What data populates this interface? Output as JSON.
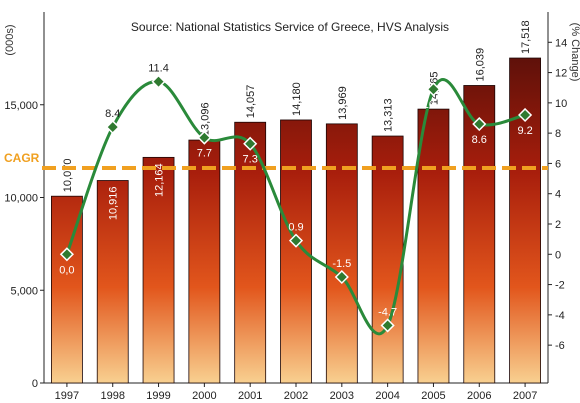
{
  "chart_data": {
    "type": "bar",
    "title": "Source: National Statistics Service of Greece, HVS Analysis",
    "ylabel_left": "(000s)",
    "ylabel_right": "(% Change)",
    "categories": [
      "1997",
      "1998",
      "1999",
      "2000",
      "2001",
      "2002",
      "2003",
      "2004",
      "2005",
      "2006",
      "2007"
    ],
    "bar_values": [
      10070,
      10916,
      12164,
      13096,
      14057,
      14180,
      13969,
      13313,
      14765,
      16039,
      17518
    ],
    "bar_labels": [
      "10,070",
      "10,916",
      "12,164",
      "13,096",
      "14,057",
      "14,180",
      "13,969",
      "13,313",
      "14,765",
      "16,039",
      "17,518"
    ],
    "pct_values": [
      0.0,
      8.4,
      11.4,
      7.7,
      7.3,
      0.9,
      -1.5,
      -4.7,
      10.9,
      8.6,
      9.2
    ],
    "pct_labels": [
      "0,0",
      "8.4",
      "11.4",
      "7.7",
      "7.3",
      "0.9",
      "-1.5",
      "-4.7",
      "10.9",
      "8.6",
      "9.2"
    ],
    "cagr_label": "CAGR",
    "cagr_value": 5.7,
    "yticks_left": [
      "0",
      "5,000",
      "10,000",
      "15,000"
    ],
    "yticks_left_values": [
      0,
      5000,
      10000,
      15000
    ],
    "ylim_left": [
      0,
      20000
    ],
    "yticks_right": [
      "-6",
      "-4",
      "-2",
      "0",
      "2",
      "4",
      "6",
      "8",
      "10",
      "12",
      "14"
    ],
    "yticks_right_values": [
      -6,
      -4,
      -2,
      0,
      2,
      4,
      6,
      8,
      10,
      12,
      14
    ],
    "ylim_right": [
      -8.5,
      16
    ],
    "colors": {
      "bar_top": "#3a0a08",
      "bar_mid": "#b82a10",
      "bar_bottom": "#f6c878",
      "line": "#2a8a3a",
      "marker": "#2f7a30",
      "cagr": "#f0a020"
    }
  }
}
